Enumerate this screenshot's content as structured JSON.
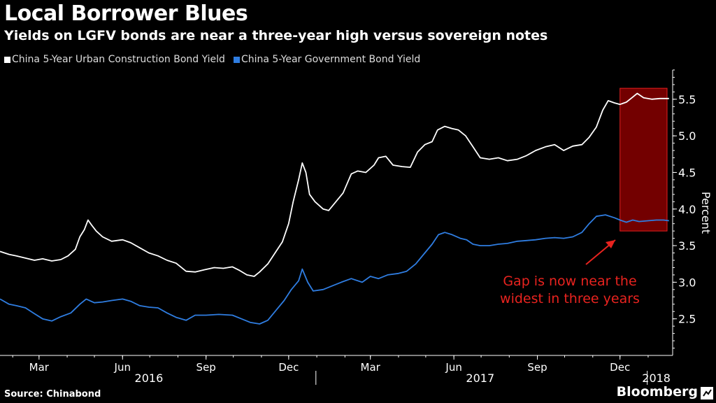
{
  "header": {
    "title": "Local Borrower Blues",
    "subtitle": "Yields on LGFV bonds are near a three-year high versus sovereign notes"
  },
  "legend": [
    {
      "label": "China 5-Year Urban Construction Bond Yield",
      "color": "#ffffff"
    },
    {
      "label": "China 5-Year Government Bond Yield",
      "color": "#2f7de1"
    }
  ],
  "footer": {
    "source": "Source: Chinabond",
    "brand": "Bloomberg"
  },
  "chart_data": {
    "type": "line",
    "ylabel": "Percent",
    "ylim": [
      2.0,
      5.9
    ],
    "yticks": [
      "2.5",
      "3.0",
      "3.5",
      "4.0",
      "4.5",
      "5.0",
      "5.5"
    ],
    "xlim": [
      "2016-01-18",
      "2018-01-28"
    ],
    "month_ticks": [
      {
        "date": "2016-03-01",
        "label": "Mar"
      },
      {
        "date": "2016-06-01",
        "label": "Jun"
      },
      {
        "date": "2016-09-01",
        "label": "Sep"
      },
      {
        "date": "2016-12-01",
        "label": "Dec"
      },
      {
        "date": "2017-03-01",
        "label": "Mar"
      },
      {
        "date": "2017-06-01",
        "label": "Jun"
      },
      {
        "date": "2017-09-01",
        "label": "Sep"
      },
      {
        "date": "2017-12-01",
        "label": "Dec"
      }
    ],
    "year_labels": [
      {
        "date": "2016-06-30",
        "label": "2016"
      },
      {
        "date": "2017-06-30",
        "label": "2017"
      },
      {
        "date": "2018-01-10",
        "label": "2018"
      }
    ],
    "year_separators": [
      "2016-12-31",
      "2017-12-31"
    ],
    "series": [
      {
        "name": "China 5-Year Urban Construction Bond Yield",
        "color": "#ffffff",
        "points": [
          [
            "2016-01-18",
            3.42
          ],
          [
            "2016-01-28",
            3.38
          ],
          [
            "2016-02-05",
            3.36
          ],
          [
            "2016-02-15",
            3.33
          ],
          [
            "2016-02-25",
            3.3
          ],
          [
            "2016-03-05",
            3.32
          ],
          [
            "2016-03-15",
            3.29
          ],
          [
            "2016-03-25",
            3.31
          ],
          [
            "2016-04-02",
            3.36
          ],
          [
            "2016-04-10",
            3.45
          ],
          [
            "2016-04-15",
            3.62
          ],
          [
            "2016-04-20",
            3.72
          ],
          [
            "2016-04-24",
            3.85
          ],
          [
            "2016-04-28",
            3.78
          ],
          [
            "2016-05-03",
            3.7
          ],
          [
            "2016-05-10",
            3.62
          ],
          [
            "2016-05-20",
            3.56
          ],
          [
            "2016-06-01",
            3.58
          ],
          [
            "2016-06-10",
            3.54
          ],
          [
            "2016-06-20",
            3.47
          ],
          [
            "2016-06-30",
            3.4
          ],
          [
            "2016-07-10",
            3.36
          ],
          [
            "2016-07-20",
            3.3
          ],
          [
            "2016-07-30",
            3.26
          ],
          [
            "2016-08-10",
            3.15
          ],
          [
            "2016-08-20",
            3.14
          ],
          [
            "2016-08-30",
            3.17
          ],
          [
            "2016-09-10",
            3.2
          ],
          [
            "2016-09-20",
            3.19
          ],
          [
            "2016-09-30",
            3.21
          ],
          [
            "2016-10-08",
            3.16
          ],
          [
            "2016-10-16",
            3.1
          ],
          [
            "2016-10-24",
            3.08
          ],
          [
            "2016-10-30",
            3.14
          ],
          [
            "2016-11-08",
            3.25
          ],
          [
            "2016-11-16",
            3.4
          ],
          [
            "2016-11-24",
            3.55
          ],
          [
            "2016-12-01",
            3.8
          ],
          [
            "2016-12-06",
            4.1
          ],
          [
            "2016-12-12",
            4.4
          ],
          [
            "2016-12-16",
            4.63
          ],
          [
            "2016-12-20",
            4.5
          ],
          [
            "2016-12-24",
            4.2
          ],
          [
            "2016-12-30",
            4.1
          ],
          [
            "2017-01-08",
            4.0
          ],
          [
            "2017-01-14",
            3.98
          ],
          [
            "2017-01-22",
            4.1
          ],
          [
            "2017-01-30",
            4.22
          ],
          [
            "2017-02-08",
            4.48
          ],
          [
            "2017-02-15",
            4.52
          ],
          [
            "2017-02-24",
            4.5
          ],
          [
            "2017-03-05",
            4.6
          ],
          [
            "2017-03-10",
            4.7
          ],
          [
            "2017-03-18",
            4.72
          ],
          [
            "2017-03-26",
            4.6
          ],
          [
            "2017-04-05",
            4.58
          ],
          [
            "2017-04-14",
            4.57
          ],
          [
            "2017-04-22",
            4.78
          ],
          [
            "2017-04-30",
            4.88
          ],
          [
            "2017-05-08",
            4.92
          ],
          [
            "2017-05-14",
            5.08
          ],
          [
            "2017-05-22",
            5.13
          ],
          [
            "2017-05-30",
            5.1
          ],
          [
            "2017-06-06",
            5.08
          ],
          [
            "2017-06-14",
            5.0
          ],
          [
            "2017-06-22",
            4.85
          ],
          [
            "2017-06-30",
            4.7
          ],
          [
            "2017-07-10",
            4.68
          ],
          [
            "2017-07-20",
            4.7
          ],
          [
            "2017-07-30",
            4.66
          ],
          [
            "2017-08-10",
            4.68
          ],
          [
            "2017-08-20",
            4.73
          ],
          [
            "2017-08-30",
            4.8
          ],
          [
            "2017-09-10",
            4.85
          ],
          [
            "2017-09-20",
            4.88
          ],
          [
            "2017-09-30",
            4.8
          ],
          [
            "2017-10-10",
            4.86
          ],
          [
            "2017-10-20",
            4.88
          ],
          [
            "2017-10-28",
            4.98
          ],
          [
            "2017-11-05",
            5.12
          ],
          [
            "2017-11-12",
            5.35
          ],
          [
            "2017-11-18",
            5.48
          ],
          [
            "2017-11-25",
            5.45
          ],
          [
            "2017-12-01",
            5.43
          ],
          [
            "2017-12-08",
            5.46
          ],
          [
            "2017-12-14",
            5.52
          ],
          [
            "2017-12-20",
            5.58
          ],
          [
            "2017-12-27",
            5.52
          ],
          [
            "2018-01-05",
            5.5
          ],
          [
            "2018-01-14",
            5.51
          ],
          [
            "2018-01-24",
            5.51
          ]
        ]
      },
      {
        "name": "China 5-Year Government Bond Yield",
        "color": "#2f7de1",
        "points": [
          [
            "2016-01-18",
            2.77
          ],
          [
            "2016-01-28",
            2.7
          ],
          [
            "2016-02-05",
            2.68
          ],
          [
            "2016-02-15",
            2.65
          ],
          [
            "2016-02-25",
            2.57
          ],
          [
            "2016-03-05",
            2.5
          ],
          [
            "2016-03-15",
            2.47
          ],
          [
            "2016-03-25",
            2.53
          ],
          [
            "2016-04-05",
            2.58
          ],
          [
            "2016-04-15",
            2.7
          ],
          [
            "2016-04-22",
            2.77
          ],
          [
            "2016-05-01",
            2.72
          ],
          [
            "2016-05-10",
            2.73
          ],
          [
            "2016-05-20",
            2.75
          ],
          [
            "2016-06-01",
            2.77
          ],
          [
            "2016-06-10",
            2.74
          ],
          [
            "2016-06-20",
            2.68
          ],
          [
            "2016-06-30",
            2.66
          ],
          [
            "2016-07-10",
            2.65
          ],
          [
            "2016-07-20",
            2.58
          ],
          [
            "2016-07-30",
            2.52
          ],
          [
            "2016-08-10",
            2.48
          ],
          [
            "2016-08-20",
            2.55
          ],
          [
            "2016-09-01",
            2.55
          ],
          [
            "2016-09-15",
            2.56
          ],
          [
            "2016-09-30",
            2.55
          ],
          [
            "2016-10-10",
            2.5
          ],
          [
            "2016-10-20",
            2.45
          ],
          [
            "2016-10-30",
            2.43
          ],
          [
            "2016-11-08",
            2.48
          ],
          [
            "2016-11-16",
            2.6
          ],
          [
            "2016-11-26",
            2.75
          ],
          [
            "2016-12-04",
            2.9
          ],
          [
            "2016-12-12",
            3.02
          ],
          [
            "2016-12-16",
            3.18
          ],
          [
            "2016-12-22",
            3.0
          ],
          [
            "2016-12-28",
            2.88
          ],
          [
            "2017-01-08",
            2.9
          ],
          [
            "2017-01-18",
            2.95
          ],
          [
            "2017-01-28",
            3.0
          ],
          [
            "2017-02-08",
            3.05
          ],
          [
            "2017-02-20",
            3.0
          ],
          [
            "2017-03-01",
            3.08
          ],
          [
            "2017-03-10",
            3.05
          ],
          [
            "2017-03-20",
            3.1
          ],
          [
            "2017-04-01",
            3.12
          ],
          [
            "2017-04-10",
            3.15
          ],
          [
            "2017-04-20",
            3.25
          ],
          [
            "2017-04-30",
            3.4
          ],
          [
            "2017-05-08",
            3.52
          ],
          [
            "2017-05-15",
            3.65
          ],
          [
            "2017-05-22",
            3.68
          ],
          [
            "2017-05-30",
            3.65
          ],
          [
            "2017-06-08",
            3.6
          ],
          [
            "2017-06-15",
            3.58
          ],
          [
            "2017-06-22",
            3.52
          ],
          [
            "2017-06-30",
            3.5
          ],
          [
            "2017-07-10",
            3.5
          ],
          [
            "2017-07-20",
            3.52
          ],
          [
            "2017-07-30",
            3.53
          ],
          [
            "2017-08-10",
            3.56
          ],
          [
            "2017-08-20",
            3.57
          ],
          [
            "2017-08-30",
            3.58
          ],
          [
            "2017-09-10",
            3.6
          ],
          [
            "2017-09-20",
            3.61
          ],
          [
            "2017-09-30",
            3.6
          ],
          [
            "2017-10-10",
            3.62
          ],
          [
            "2017-10-20",
            3.68
          ],
          [
            "2017-10-28",
            3.8
          ],
          [
            "2017-11-05",
            3.9
          ],
          [
            "2017-11-15",
            3.92
          ],
          [
            "2017-11-25",
            3.88
          ],
          [
            "2017-12-01",
            3.85
          ],
          [
            "2017-12-08",
            3.82
          ],
          [
            "2017-12-15",
            3.85
          ],
          [
            "2017-12-22",
            3.83
          ],
          [
            "2018-01-01",
            3.84
          ],
          [
            "2018-01-10",
            3.85
          ],
          [
            "2018-01-18",
            3.85
          ],
          [
            "2018-01-24",
            3.84
          ]
        ]
      }
    ],
    "highlight": {
      "from": "2017-12-01",
      "to": "2018-01-28",
      "y_from": 3.7,
      "y_to": 5.65,
      "color": "#c00000"
    },
    "annotation": {
      "lines": [
        "Gap is now near the",
        "widest in three years"
      ],
      "color": "#e8231f"
    }
  }
}
